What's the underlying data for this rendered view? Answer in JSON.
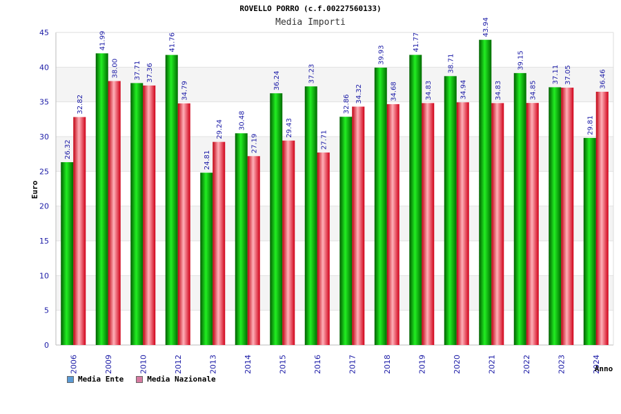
{
  "chart_data": {
    "type": "bar",
    "title": "ROVELLO PORRO (c.f.00227560133)",
    "subtitle": "Media Importi",
    "xlabel": "Anno",
    "ylabel": "Euro",
    "ylim": [
      0,
      45
    ],
    "yticks": [
      0,
      5,
      10,
      15,
      20,
      25,
      30,
      35,
      40,
      45
    ],
    "yticks_text": [
      "0",
      "5",
      "10",
      "15",
      "20",
      "25",
      "30",
      "35",
      "40",
      "45"
    ],
    "grid": true,
    "legend_position": "bottom-left",
    "categories": [
      "2006",
      "2009",
      "2010",
      "2012",
      "2013",
      "2014",
      "2015",
      "2016",
      "2017",
      "2018",
      "2019",
      "2020",
      "2021",
      "2022",
      "2023",
      "2024"
    ],
    "series": [
      {
        "name": "Media Ente",
        "color": "#00b000",
        "legend_color": "#5b9bd5",
        "values": [
          26.32,
          41.99,
          37.71,
          41.76,
          24.81,
          30.48,
          36.24,
          37.23,
          32.86,
          39.93,
          41.77,
          38.71,
          43.94,
          39.15,
          37.11,
          29.81
        ],
        "labels": [
          "26.32",
          "41.99",
          "37.71",
          "41.76",
          "24.81",
          "30.48",
          "36.24",
          "37.23",
          "32.86",
          "39.93",
          "41.77",
          "38.71",
          "43.94",
          "39.15",
          "37.11",
          "29.81"
        ]
      },
      {
        "name": "Media Nazionale",
        "color": "#e8222b",
        "legend_color": "#d67aa0",
        "values": [
          32.82,
          38.0,
          37.36,
          34.79,
          29.24,
          27.19,
          29.43,
          27.71,
          34.32,
          34.68,
          34.83,
          34.94,
          34.83,
          34.85,
          37.05,
          36.46
        ],
        "labels": [
          "32.82",
          "38.00",
          "37.36",
          "34.79",
          "29.24",
          "27.19",
          "29.43",
          "27.71",
          "34.32",
          "34.68",
          "34.83",
          "34.94",
          "34.83",
          "34.85",
          "37.05",
          "36.46"
        ]
      }
    ]
  }
}
